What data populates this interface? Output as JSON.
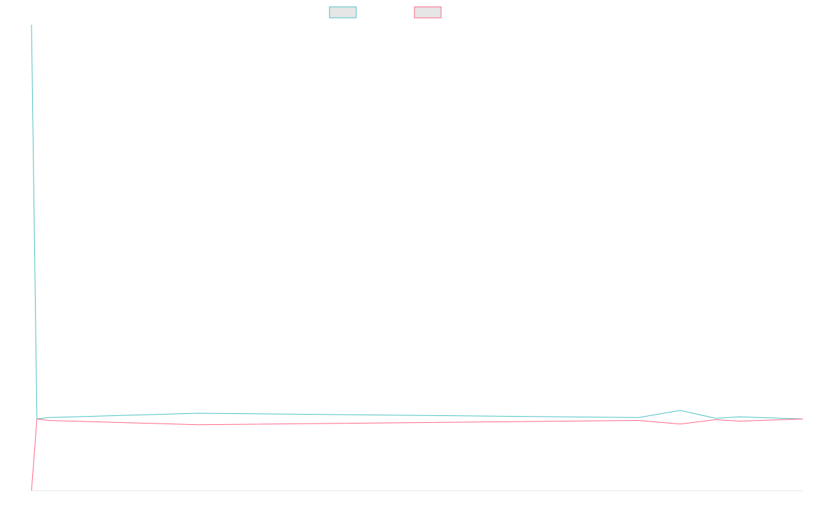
{
  "chart_data": {
    "type": "line",
    "title": "",
    "xlabel": "",
    "ylabel": "",
    "grid": false,
    "legend": {
      "placement": "top-center",
      "entries": [
        {
          "label": "",
          "color": "#4bc0c0"
        },
        {
          "label": "",
          "color": "#ff6384"
        }
      ]
    },
    "x": [
      0,
      0.7,
      2.2,
      21.6,
      78.7,
      84.1,
      88.7,
      91.8,
      100
    ],
    "xlim": [
      0,
      100
    ],
    "ylim": [
      -1,
      5.5
    ],
    "series": [
      {
        "color": "#4bc0c0",
        "values": [
          5.5,
          0,
          0.02,
          0.08,
          0.02,
          0.12,
          0.01,
          0.03,
          0
        ]
      },
      {
        "color": "#ff6384",
        "values": [
          -1,
          0,
          -0.02,
          -0.08,
          -0.02,
          -0.07,
          -0.01,
          -0.03,
          0
        ]
      }
    ]
  }
}
